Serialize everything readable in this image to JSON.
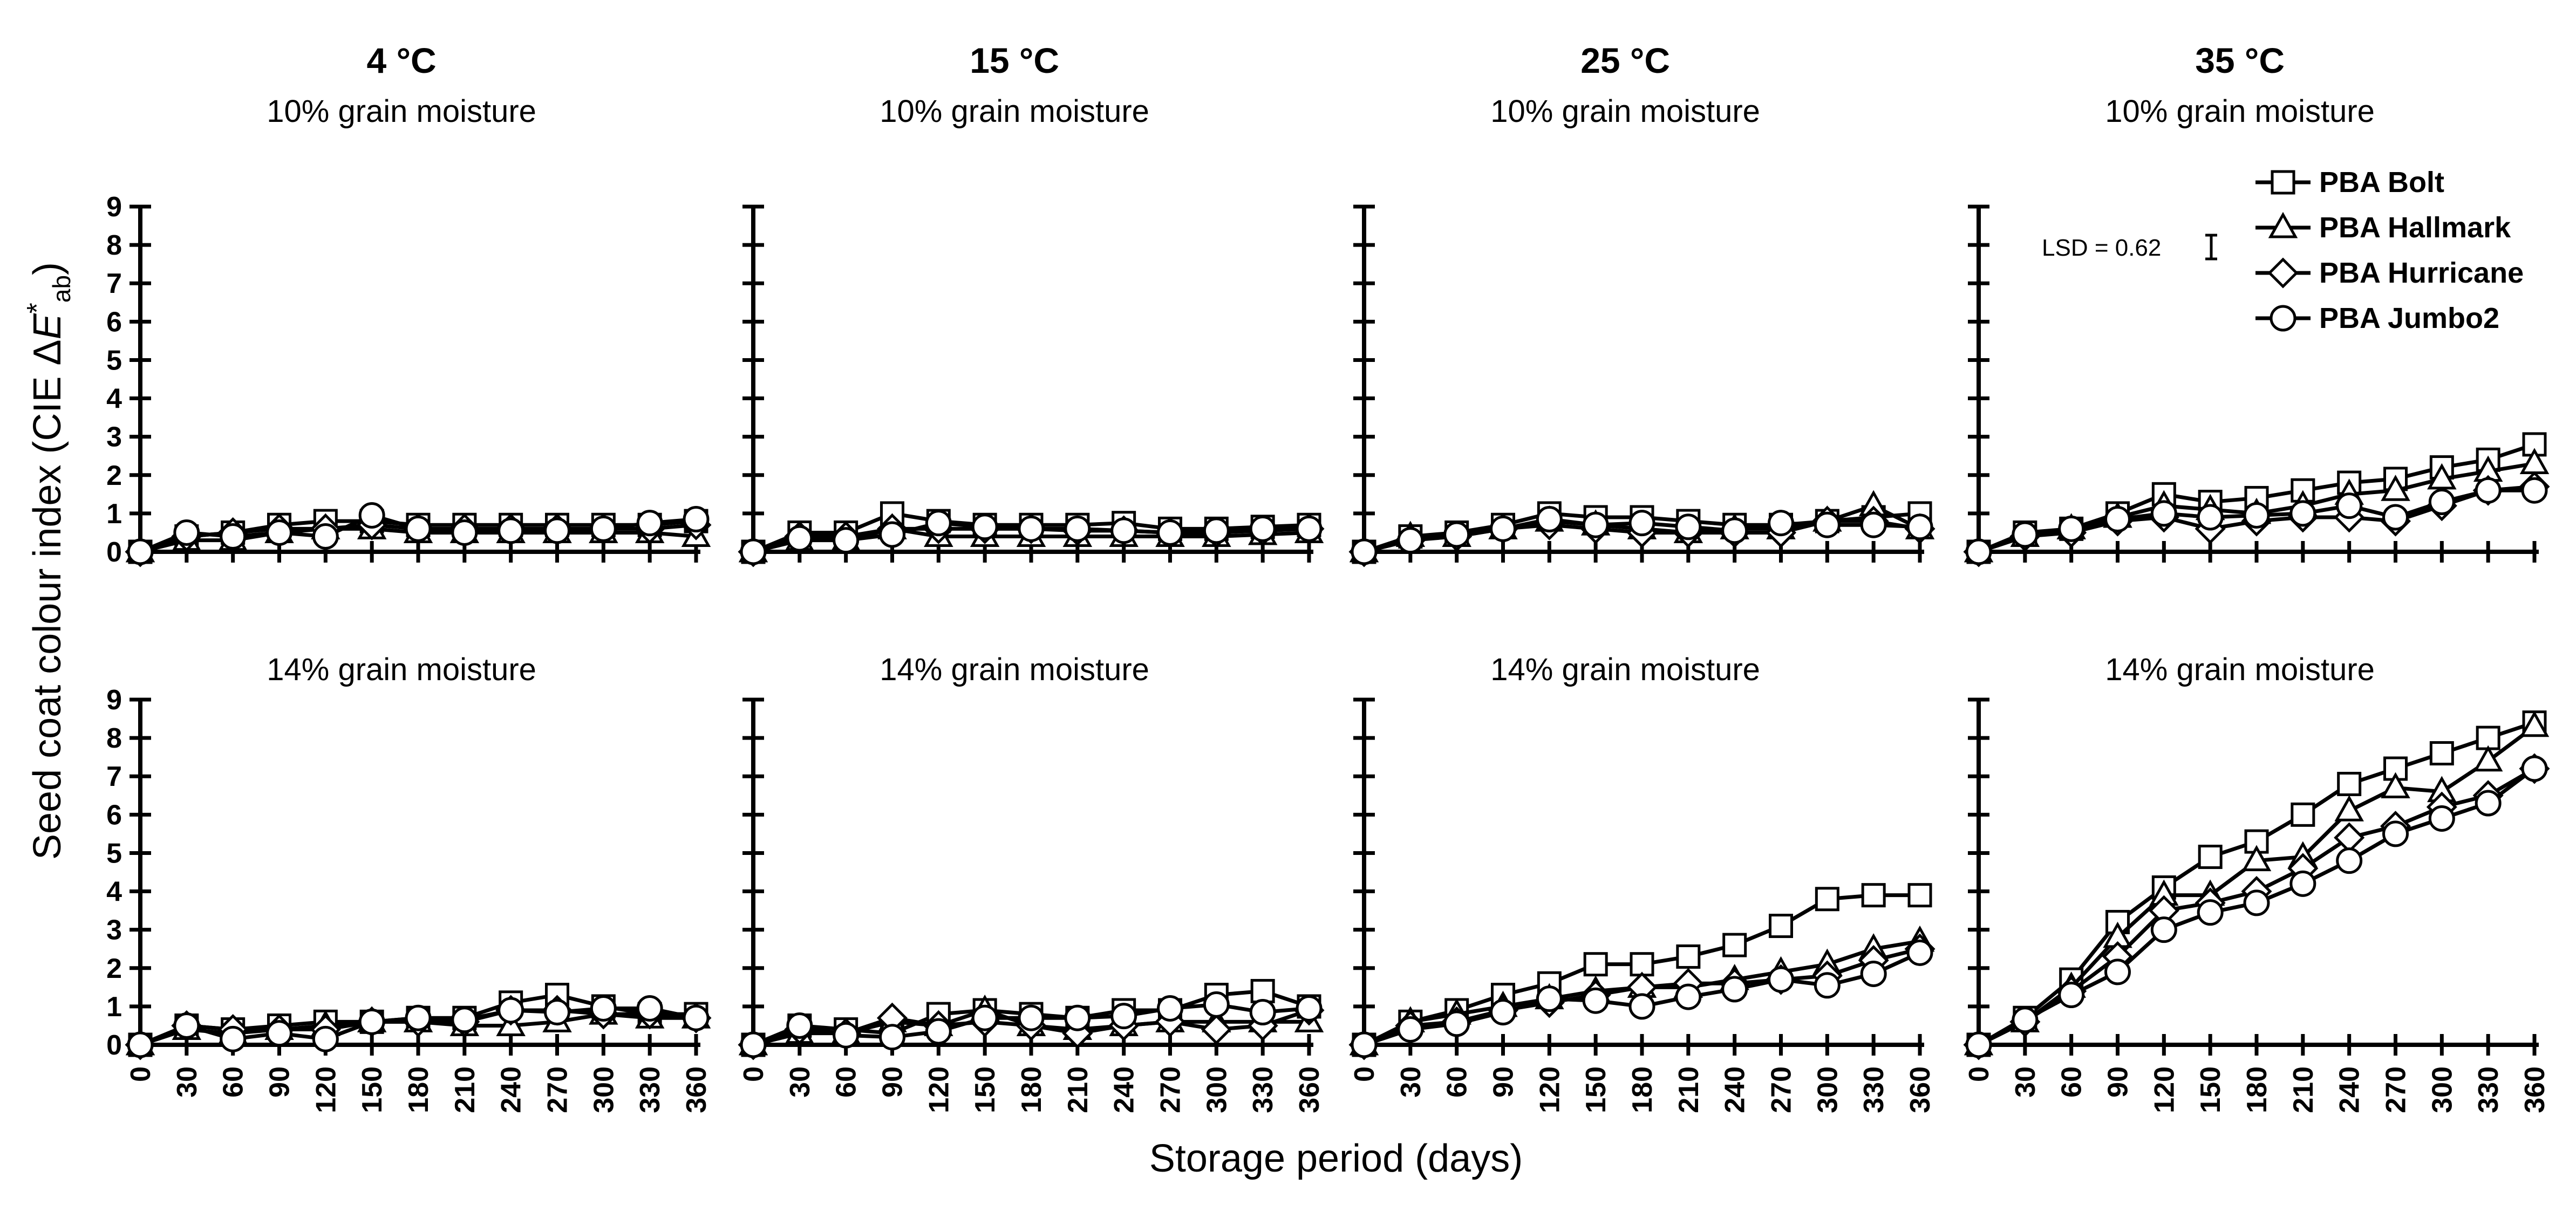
{
  "figure": {
    "ylabel_main": "Seed coat colour index (CIE ",
    "ylabel_delta": "Δ",
    "ylabel_e": "E",
    "ylabel_star": "*",
    "ylabel_sub": "ab",
    "ylabel_close": ")",
    "xlabel": "Storage period (days)"
  },
  "legend": [
    {
      "label": "PBA Bolt",
      "marker": "square"
    },
    {
      "label": "PBA Hallmark",
      "marker": "triangle"
    },
    {
      "label": "PBA Hurricane",
      "marker": "diamond"
    },
    {
      "label": "PBA Jumbo2",
      "marker": "circle"
    }
  ],
  "lsd_label": "LSD = 0.62",
  "lsd_value": 0.62,
  "chart_data": {
    "type": "line",
    "x": [
      0,
      30,
      60,
      90,
      120,
      150,
      180,
      210,
      240,
      270,
      300,
      330,
      360
    ],
    "x_ticks": [
      "0",
      "30",
      "60",
      "90",
      "120",
      "150",
      "180",
      "210",
      "240",
      "270",
      "300",
      "330",
      "360"
    ],
    "y_ticks": [
      "0",
      "1",
      "2",
      "3",
      "4",
      "5",
      "6",
      "7",
      "8",
      "9"
    ],
    "ylim": [
      0,
      9
    ],
    "xlim": [
      0,
      360
    ],
    "panels": [
      {
        "row": 0,
        "col": 0,
        "temp": "4 °C",
        "moisture": "10% grain moisture",
        "series": [
          {
            "name": "PBA Bolt",
            "values": [
              0,
              0.4,
              0.5,
              0.7,
              0.8,
              0.8,
              0.7,
              0.7,
              0.7,
              0.7,
              0.7,
              0.7,
              0.8
            ]
          },
          {
            "name": "PBA Hallmark",
            "values": [
              0,
              0.3,
              0.3,
              0.5,
              0.6,
              0.6,
              0.5,
              0.5,
              0.5,
              0.5,
              0.5,
              0.5,
              0.4
            ]
          },
          {
            "name": "PBA Hurricane",
            "values": [
              0,
              0.4,
              0.5,
              0.6,
              0.6,
              0.7,
              0.6,
              0.6,
              0.6,
              0.6,
              0.6,
              0.6,
              0.7
            ]
          },
          {
            "name": "PBA Jumbo2",
            "values": [
              0,
              0.5,
              0.4,
              0.5,
              0.4,
              0.95,
              0.6,
              0.5,
              0.55,
              0.55,
              0.6,
              0.75,
              0.85
            ]
          }
        ]
      },
      {
        "row": 0,
        "col": 1,
        "temp": "15 °C",
        "moisture": "10% grain moisture",
        "series": [
          {
            "name": "PBA Bolt",
            "values": [
              0,
              0.5,
              0.5,
              1.0,
              0.8,
              0.7,
              0.7,
              0.7,
              0.75,
              0.6,
              0.6,
              0.65,
              0.7
            ]
          },
          {
            "name": "PBA Hallmark",
            "values": [
              0,
              0.3,
              0.3,
              0.6,
              0.4,
              0.4,
              0.4,
              0.4,
              0.4,
              0.4,
              0.4,
              0.45,
              0.5
            ]
          },
          {
            "name": "PBA Hurricane",
            "values": [
              0,
              0.4,
              0.4,
              0.6,
              0.6,
              0.6,
              0.6,
              0.55,
              0.55,
              0.5,
              0.5,
              0.55,
              0.6
            ]
          },
          {
            "name": "PBA Jumbo2",
            "values": [
              0,
              0.35,
              0.3,
              0.45,
              0.75,
              0.65,
              0.6,
              0.6,
              0.55,
              0.5,
              0.55,
              0.6,
              0.6
            ]
          }
        ]
      },
      {
        "row": 0,
        "col": 2,
        "temp": "25 °C",
        "moisture": "10% grain moisture",
        "series": [
          {
            "name": "PBA Bolt",
            "values": [
              0,
              0.4,
              0.5,
              0.7,
              1.0,
              0.9,
              0.9,
              0.8,
              0.7,
              0.7,
              0.8,
              0.9,
              1.0
            ]
          },
          {
            "name": "PBA Hallmark",
            "values": [
              0,
              0.4,
              0.4,
              0.6,
              0.8,
              0.7,
              0.6,
              0.5,
              0.6,
              0.6,
              0.8,
              1.2,
              0.6
            ]
          },
          {
            "name": "PBA Hurricane",
            "values": [
              0,
              0.3,
              0.4,
              0.6,
              0.7,
              0.6,
              0.5,
              0.5,
              0.5,
              0.5,
              0.8,
              0.8,
              0.6
            ]
          },
          {
            "name": "PBA Jumbo2",
            "values": [
              0,
              0.3,
              0.45,
              0.6,
              0.85,
              0.7,
              0.75,
              0.65,
              0.55,
              0.75,
              0.7,
              0.7,
              0.65
            ]
          }
        ]
      },
      {
        "row": 0,
        "col": 3,
        "temp": "35 °C",
        "moisture": "10% grain moisture",
        "series": [
          {
            "name": "PBA Bolt",
            "values": [
              0,
              0.5,
              0.6,
              1.0,
              1.5,
              1.3,
              1.4,
              1.6,
              1.8,
              1.9,
              2.2,
              2.4,
              2.8
            ]
          },
          {
            "name": "PBA Hallmark",
            "values": [
              0,
              0.4,
              0.6,
              0.9,
              1.2,
              1.1,
              1.0,
              1.2,
              1.5,
              1.6,
              1.9,
              2.1,
              2.3
            ]
          },
          {
            "name": "PBA Hurricane",
            "values": [
              0,
              0.4,
              0.5,
              0.8,
              0.9,
              0.6,
              0.8,
              0.9,
              0.9,
              0.8,
              1.2,
              1.6,
              1.7
            ]
          },
          {
            "name": "PBA Jumbo2",
            "values": [
              0,
              0.45,
              0.6,
              0.85,
              1.0,
              0.9,
              0.95,
              1.0,
              1.2,
              0.9,
              1.3,
              1.6,
              1.6
            ]
          }
        ]
      },
      {
        "row": 1,
        "col": 0,
        "temp": "",
        "moisture": "14% grain moisture",
        "series": [
          {
            "name": "PBA Bolt",
            "values": [
              0,
              0.5,
              0.4,
              0.5,
              0.6,
              0.6,
              0.7,
              0.7,
              1.1,
              1.3,
              1.0,
              0.8,
              0.8
            ]
          },
          {
            "name": "PBA Hallmark",
            "values": [
              0,
              0.4,
              0.3,
              0.4,
              0.5,
              0.6,
              0.6,
              0.5,
              0.5,
              0.6,
              0.8,
              0.7,
              0.7
            ]
          },
          {
            "name": "PBA Hurricane",
            "values": [
              0,
              0.5,
              0.4,
              0.4,
              0.4,
              0.6,
              0.6,
              0.6,
              0.9,
              0.9,
              0.8,
              0.8,
              0.7
            ]
          },
          {
            "name": "PBA Jumbo2",
            "values": [
              0,
              0.5,
              0.15,
              0.3,
              0.15,
              0.6,
              0.7,
              0.65,
              0.9,
              0.85,
              0.95,
              0.95,
              0.7
            ]
          }
        ]
      },
      {
        "row": 1,
        "col": 1,
        "temp": "",
        "moisture": "14% grain moisture",
        "series": [
          {
            "name": "PBA Bolt",
            "values": [
              0,
              0.5,
              0.4,
              0.3,
              0.8,
              0.9,
              0.8,
              0.7,
              0.9,
              0.9,
              1.3,
              1.4,
              1.0
            ]
          },
          {
            "name": "PBA Hallmark",
            "values": [
              0,
              0.3,
              0.3,
              0.6,
              0.5,
              0.9,
              0.5,
              0.4,
              0.5,
              0.6,
              0.6,
              0.6,
              0.6
            ]
          },
          {
            "name": "PBA Hurricane",
            "values": [
              0,
              0.4,
              0.3,
              0.7,
              0.5,
              0.6,
              0.5,
              0.3,
              0.5,
              0.6,
              0.4,
              0.5,
              0.9
            ]
          },
          {
            "name": "PBA Jumbo2",
            "values": [
              0,
              0.5,
              0.25,
              0.2,
              0.35,
              0.7,
              0.7,
              0.7,
              0.75,
              0.95,
              1.05,
              0.85,
              0.95
            ]
          }
        ]
      },
      {
        "row": 1,
        "col": 2,
        "temp": "",
        "moisture": "14% grain moisture",
        "series": [
          {
            "name": "PBA Bolt",
            "values": [
              0,
              0.6,
              0.9,
              1.3,
              1.6,
              2.1,
              2.1,
              2.3,
              2.6,
              3.1,
              3.8,
              3.9,
              3.9
            ]
          },
          {
            "name": "PBA Hallmark",
            "values": [
              0,
              0.6,
              0.8,
              1.0,
              1.2,
              1.4,
              1.5,
              1.5,
              1.7,
              1.9,
              2.1,
              2.5,
              2.7
            ]
          },
          {
            "name": "PBA Hurricane",
            "values": [
              0,
              0.5,
              0.6,
              0.9,
              1.1,
              1.3,
              1.5,
              1.6,
              1.6,
              1.7,
              1.8,
              2.2,
              2.5
            ]
          },
          {
            "name": "PBA Jumbo2",
            "values": [
              0,
              0.4,
              0.55,
              0.85,
              1.2,
              1.15,
              1.0,
              1.25,
              1.45,
              1.7,
              1.55,
              1.85,
              2.4
            ]
          }
        ]
      },
      {
        "row": 1,
        "col": 3,
        "temp": "",
        "moisture": "14% grain moisture",
        "series": [
          {
            "name": "PBA Bolt",
            "values": [
              0,
              0.7,
              1.7,
              3.2,
              4.1,
              4.9,
              5.3,
              6.0,
              6.8,
              7.2,
              7.6,
              8.0,
              8.4
            ]
          },
          {
            "name": "PBA Hallmark",
            "values": [
              0,
              0.6,
              1.5,
              2.8,
              3.9,
              3.9,
              4.8,
              4.9,
              6.1,
              6.7,
              6.6,
              7.4,
              8.3
            ]
          },
          {
            "name": "PBA Hurricane",
            "values": [
              0,
              0.6,
              1.4,
              2.3,
              3.5,
              3.7,
              4.0,
              4.6,
              5.4,
              5.7,
              6.2,
              6.5,
              7.2
            ]
          },
          {
            "name": "PBA Jumbo2",
            "values": [
              0,
              0.65,
              1.3,
              1.9,
              3.0,
              3.45,
              3.7,
              4.2,
              4.8,
              5.5,
              5.9,
              6.3,
              7.2
            ]
          }
        ]
      }
    ]
  }
}
